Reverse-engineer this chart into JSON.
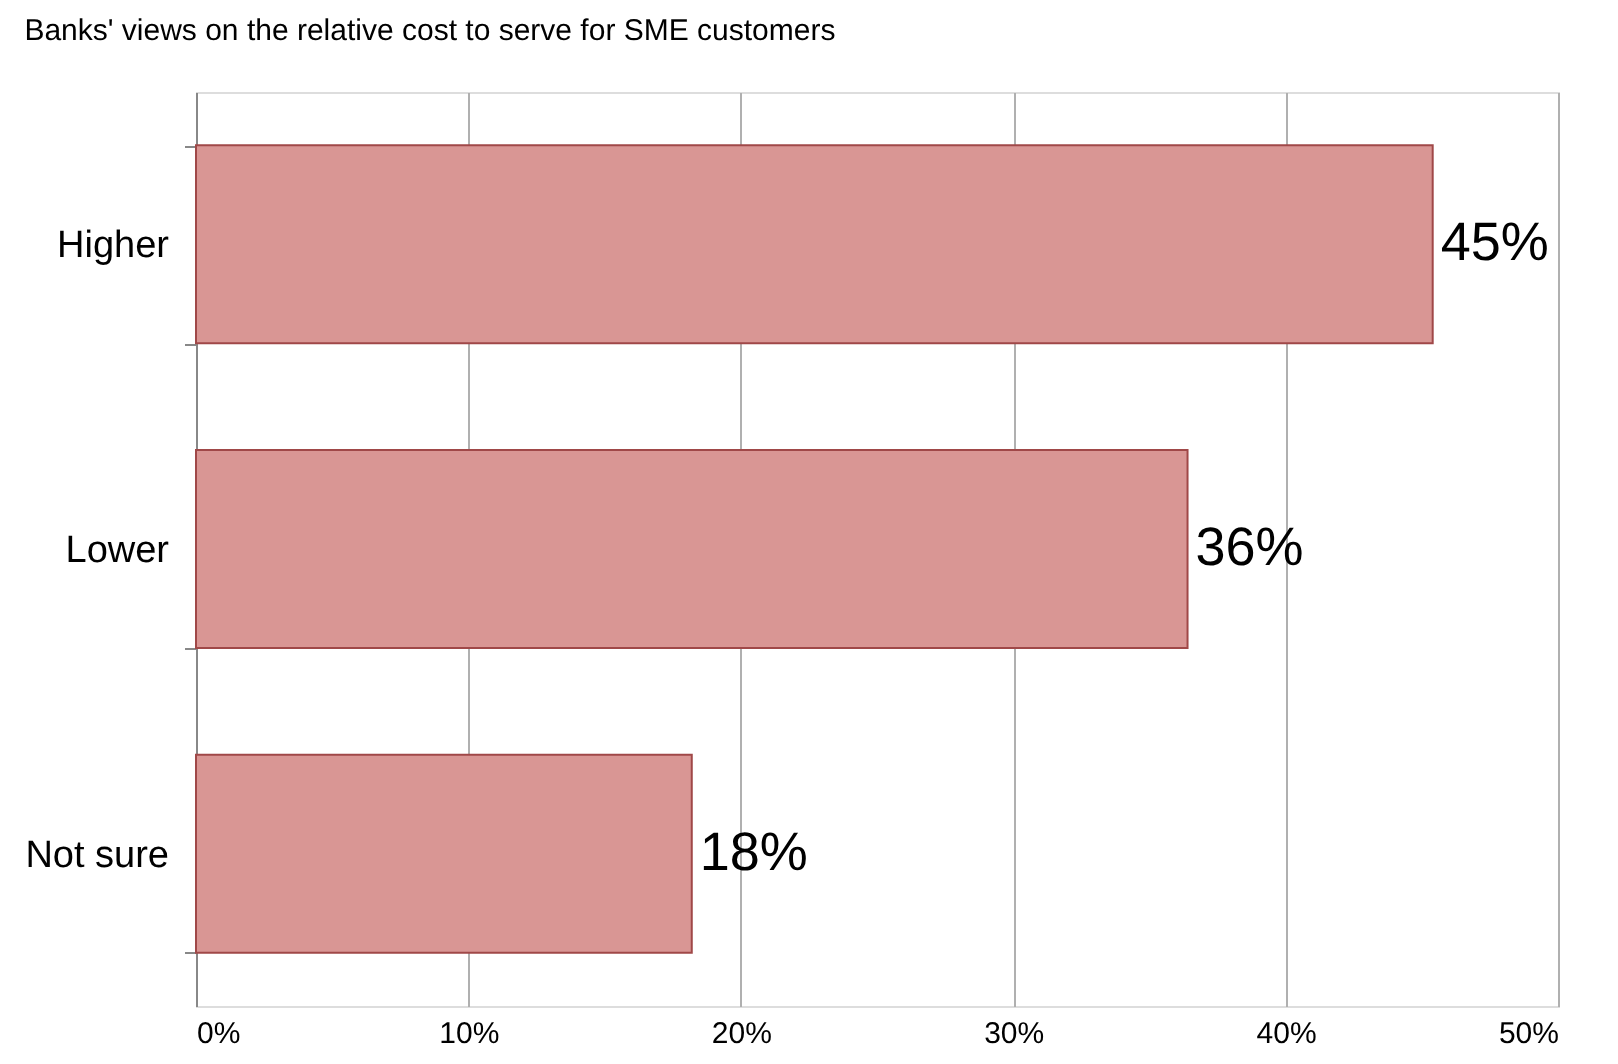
{
  "chart_data": {
    "type": "bar",
    "orientation": "horizontal",
    "title": "Banks' views on the relative cost to serve for SME customers",
    "categories": [
      "Higher",
      "Lower",
      "Not sure"
    ],
    "values": [
      45.4,
      36.4,
      18.2
    ],
    "value_labels": [
      "45%",
      "36%",
      "18%"
    ],
    "color": "#d99694",
    "xlim": [
      0,
      50
    ],
    "xticks": [
      {
        "value": 0,
        "label": "0%"
      },
      {
        "value": 10,
        "label": "10%"
      },
      {
        "value": 20,
        "label": "20%"
      },
      {
        "value": 30,
        "label": "30%"
      },
      {
        "value": 40,
        "label": "40%"
      },
      {
        "value": 50,
        "label": "50%"
      }
    ],
    "grid": "x"
  }
}
